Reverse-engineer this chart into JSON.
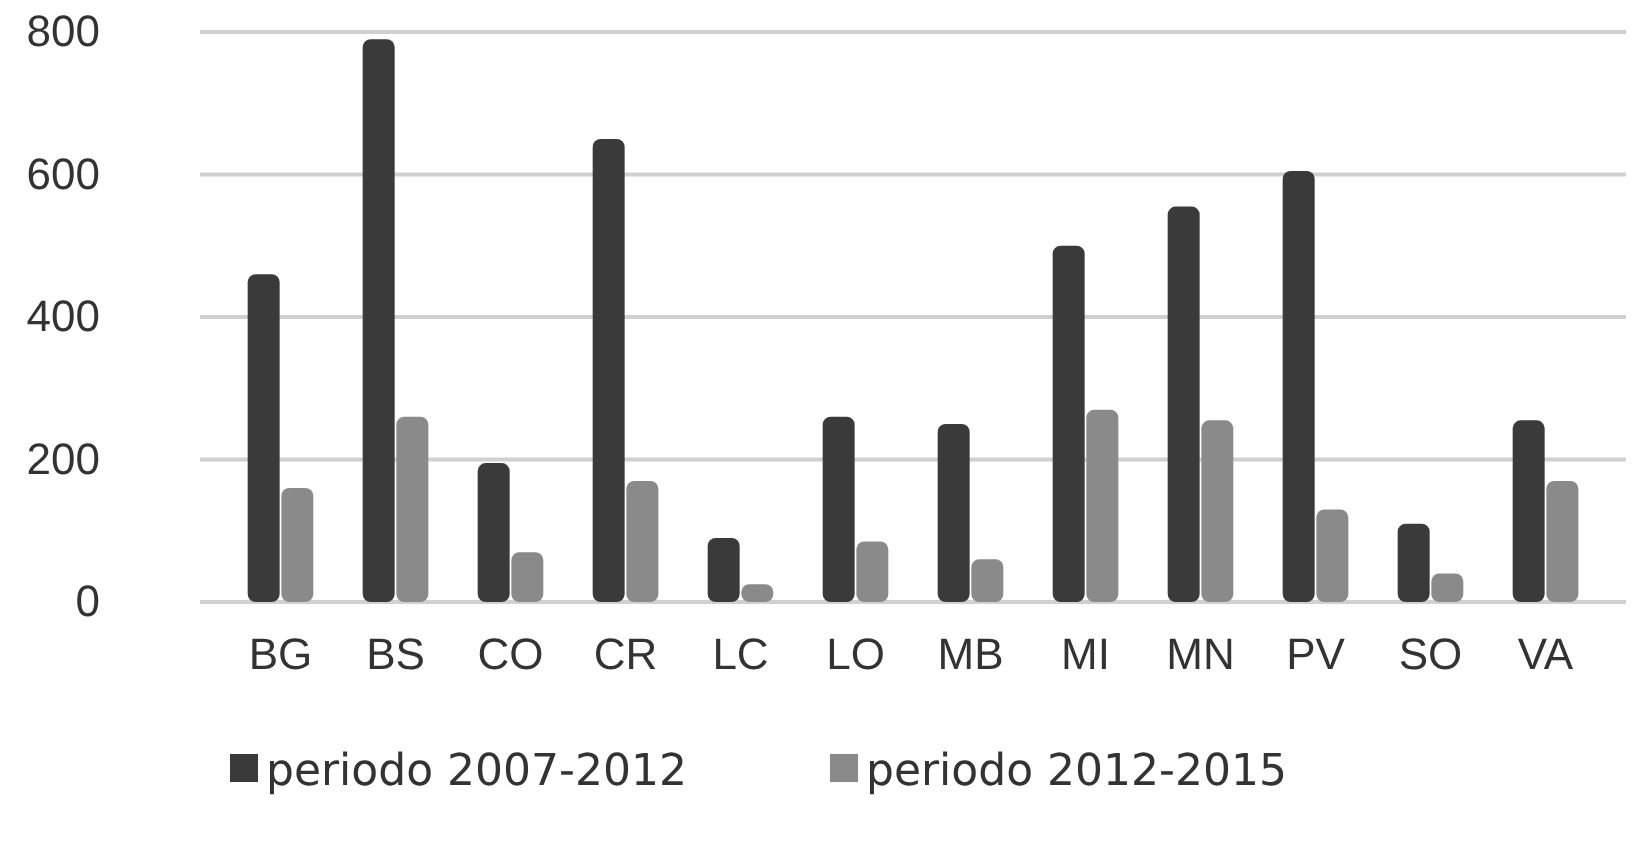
{
  "chart_data": {
    "type": "bar",
    "categories": [
      "BG",
      "BS",
      "CO",
      "CR",
      "LC",
      "LO",
      "MB",
      "MI",
      "MN",
      "PV",
      "SO",
      "VA"
    ],
    "series": [
      {
        "name": "periodo 2007-2012",
        "color": "#3a3a3a",
        "values": [
          460,
          790,
          195,
          650,
          90,
          260,
          250,
          500,
          555,
          605,
          110,
          255
        ]
      },
      {
        "name": "periodo 2012-2015",
        "color": "#8a8a8a",
        "values": [
          160,
          260,
          70,
          170,
          25,
          85,
          60,
          270,
          255,
          130,
          40,
          170
        ]
      }
    ],
    "ylim": [
      0,
      800
    ],
    "yticks": [
      0,
      200,
      400,
      600,
      800
    ],
    "grid": "y",
    "legend": "bottom"
  }
}
